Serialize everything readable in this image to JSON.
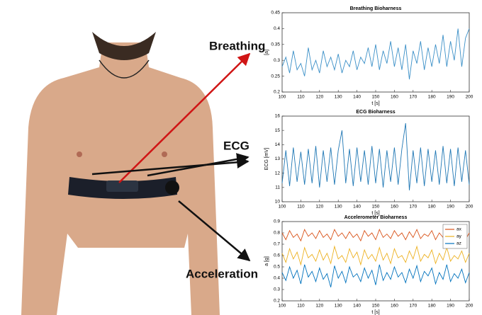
{
  "annotations": [
    "Breathing",
    "ECG",
    "Acceleration"
  ],
  "chart_data": [
    {
      "type": "line",
      "title": "Breathing Bioharness",
      "xlabel": "t [s]",
      "ylabel": "[a]",
      "xlim": [
        100,
        200
      ],
      "xticks": [
        100,
        110,
        120,
        130,
        140,
        150,
        160,
        170,
        180,
        190,
        200
      ],
      "ylim": [
        0.2,
        0.45
      ],
      "yticks": [
        0.2,
        0.25,
        0.3,
        0.35,
        0.4,
        0.45
      ],
      "x": [
        100,
        102,
        104,
        106,
        108,
        110,
        112,
        114,
        116,
        118,
        120,
        122,
        124,
        126,
        128,
        130,
        132,
        134,
        136,
        138,
        140,
        142,
        144,
        146,
        148,
        150,
        152,
        154,
        156,
        158,
        160,
        162,
        164,
        166,
        168,
        170,
        172,
        174,
        176,
        178,
        180,
        182,
        184,
        186,
        188,
        190,
        192,
        194,
        196,
        198,
        200
      ],
      "series": [
        {
          "color": "#3a8fc7",
          "values": [
            0.28,
            0.31,
            0.26,
            0.33,
            0.27,
            0.29,
            0.25,
            0.34,
            0.27,
            0.3,
            0.26,
            0.33,
            0.28,
            0.31,
            0.27,
            0.32,
            0.26,
            0.3,
            0.28,
            0.33,
            0.27,
            0.31,
            0.29,
            0.34,
            0.28,
            0.35,
            0.27,
            0.33,
            0.29,
            0.36,
            0.28,
            0.34,
            0.27,
            0.35,
            0.24,
            0.33,
            0.29,
            0.36,
            0.27,
            0.34,
            0.28,
            0.35,
            0.29,
            0.38,
            0.28,
            0.36,
            0.3,
            0.4,
            0.28,
            0.37,
            0.4
          ]
        }
      ]
    },
    {
      "type": "line",
      "title": "ECG Bioharness",
      "xlabel": "t [s]",
      "ylabel": "ECG [mV]",
      "xlim": [
        100,
        200
      ],
      "xticks": [
        100,
        110,
        120,
        130,
        140,
        150,
        160,
        170,
        180,
        190,
        200
      ],
      "ylim": [
        10,
        16
      ],
      "yticks": [
        10,
        11,
        12,
        13,
        14,
        15,
        16
      ],
      "x": [
        100,
        102,
        104,
        106,
        108,
        110,
        112,
        114,
        116,
        118,
        120,
        122,
        124,
        126,
        128,
        130,
        132,
        134,
        136,
        138,
        140,
        142,
        144,
        146,
        148,
        150,
        152,
        154,
        156,
        158,
        160,
        162,
        164,
        166,
        168,
        170,
        172,
        174,
        176,
        178,
        180,
        182,
        184,
        186,
        188,
        190,
        192,
        194,
        196,
        198,
        200
      ],
      "series": [
        {
          "color": "#1f77b4",
          "values": [
            11.3,
            13.6,
            11.1,
            13.8,
            11.4,
            13.5,
            11.2,
            13.7,
            11.3,
            13.9,
            11.0,
            13.6,
            11.4,
            13.8,
            11.2,
            13.6,
            15.0,
            11.3,
            13.7,
            11.1,
            13.8,
            11.4,
            13.6,
            11.2,
            13.9,
            11.3,
            13.7,
            11.0,
            13.6,
            11.4,
            13.8,
            11.2,
            13.7,
            15.5,
            10.8,
            13.6,
            11.3,
            13.8,
            11.1,
            13.7,
            11.4,
            13.6,
            11.2,
            13.9,
            11.3,
            13.7,
            11.1,
            13.8,
            11.4,
            13.6,
            11.2
          ]
        }
      ]
    },
    {
      "type": "line",
      "title": "Accelerometer Bioharness",
      "xlabel": "t [s]",
      "ylabel": "a [g]",
      "xlim": [
        100,
        200
      ],
      "xticks": [
        100,
        110,
        120,
        130,
        140,
        150,
        160,
        170,
        180,
        190,
        200
      ],
      "ylim": [
        0.2,
        0.9
      ],
      "yticks": [
        0.2,
        0.3,
        0.4,
        0.5,
        0.6,
        0.7,
        0.8,
        0.9
      ],
      "legend": "upper right",
      "x": [
        100,
        102,
        104,
        106,
        108,
        110,
        112,
        114,
        116,
        118,
        120,
        122,
        124,
        126,
        128,
        130,
        132,
        134,
        136,
        138,
        140,
        142,
        144,
        146,
        148,
        150,
        152,
        154,
        156,
        158,
        160,
        162,
        164,
        166,
        168,
        170,
        172,
        174,
        176,
        178,
        180,
        182,
        184,
        186,
        188,
        190,
        192,
        194,
        196,
        198,
        200
      ],
      "series": [
        {
          "name": "ax",
          "color": "#d95319",
          "values": [
            0.8,
            0.74,
            0.82,
            0.76,
            0.79,
            0.73,
            0.83,
            0.77,
            0.8,
            0.75,
            0.82,
            0.76,
            0.79,
            0.74,
            0.83,
            0.77,
            0.8,
            0.75,
            0.81,
            0.76,
            0.79,
            0.73,
            0.82,
            0.77,
            0.8,
            0.74,
            0.83,
            0.76,
            0.79,
            0.75,
            0.82,
            0.77,
            0.8,
            0.74,
            0.81,
            0.76,
            0.83,
            0.75,
            0.79,
            0.77,
            0.82,
            0.74,
            0.8,
            0.76,
            0.83,
            0.75,
            0.79,
            0.77,
            0.81,
            0.74,
            0.8
          ]
        },
        {
          "name": "ay",
          "color": "#edb120",
          "values": [
            0.62,
            0.54,
            0.66,
            0.57,
            0.63,
            0.52,
            0.67,
            0.58,
            0.61,
            0.55,
            0.65,
            0.56,
            0.62,
            0.53,
            0.68,
            0.57,
            0.6,
            0.54,
            0.66,
            0.58,
            0.63,
            0.52,
            0.65,
            0.57,
            0.61,
            0.55,
            0.67,
            0.56,
            0.62,
            0.53,
            0.66,
            0.58,
            0.6,
            0.54,
            0.64,
            0.57,
            0.68,
            0.55,
            0.61,
            0.58,
            0.65,
            0.53,
            0.62,
            0.56,
            0.67,
            0.55,
            0.6,
            0.57,
            0.64,
            0.54,
            0.62
          ]
        },
        {
          "name": "az",
          "color": "#0072bd",
          "values": [
            0.45,
            0.38,
            0.5,
            0.4,
            0.47,
            0.35,
            0.52,
            0.41,
            0.46,
            0.37,
            0.49,
            0.39,
            0.44,
            0.32,
            0.51,
            0.4,
            0.46,
            0.36,
            0.5,
            0.41,
            0.44,
            0.37,
            0.49,
            0.4,
            0.47,
            0.34,
            0.52,
            0.38,
            0.45,
            0.39,
            0.5,
            0.41,
            0.45,
            0.36,
            0.48,
            0.4,
            0.51,
            0.37,
            0.46,
            0.42,
            0.49,
            0.35,
            0.45,
            0.39,
            0.52,
            0.37,
            0.44,
            0.4,
            0.48,
            0.36,
            0.45
          ]
        }
      ]
    }
  ]
}
